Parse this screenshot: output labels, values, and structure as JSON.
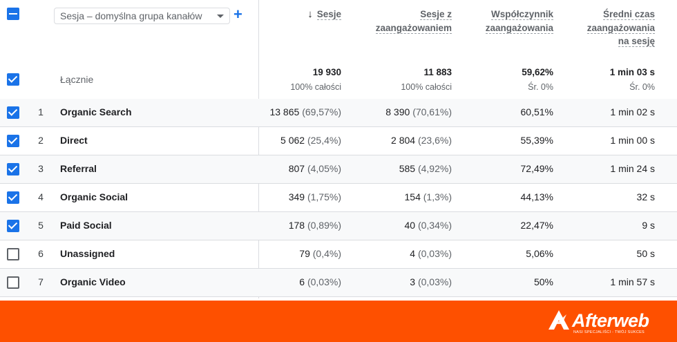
{
  "header": {
    "dimension_select": "Sesja – domyślna grupa kanałów",
    "add_dimension": "+",
    "columns": [
      {
        "lines": [
          "Sesje"
        ],
        "sorted": true,
        "sort_icon": "arrow-down-icon"
      },
      {
        "lines": [
          "Sesje z",
          "zaangażowaniem"
        ]
      },
      {
        "lines": [
          "Współczynnik",
          "zaangażowania"
        ]
      },
      {
        "lines": [
          "Średni czas",
          "zaangażowania",
          "na sesję"
        ]
      }
    ]
  },
  "totals": {
    "label": "Łącznie",
    "values": [
      "19 930",
      "11 883",
      "59,62%",
      "1 min 03 s"
    ],
    "subs": [
      "100% całości",
      "100% całości",
      "Śr. 0%",
      "Śr. 0%"
    ]
  },
  "rows": [
    {
      "index": "1",
      "checked": true,
      "name": "Organic Search",
      "sessions": "13 865",
      "sessions_pct": "(69,57%)",
      "engaged": "8 390",
      "engaged_pct": "(70,61%)",
      "rate": "60,51%",
      "time": "1 min 02 s"
    },
    {
      "index": "2",
      "checked": true,
      "name": "Direct",
      "sessions": "5 062",
      "sessions_pct": "(25,4%)",
      "engaged": "2 804",
      "engaged_pct": "(23,6%)",
      "rate": "55,39%",
      "time": "1 min 00 s"
    },
    {
      "index": "3",
      "checked": true,
      "name": "Referral",
      "sessions": "807",
      "sessions_pct": "(4,05%)",
      "engaged": "585",
      "engaged_pct": "(4,92%)",
      "rate": "72,49%",
      "time": "1 min 24 s"
    },
    {
      "index": "4",
      "checked": true,
      "name": "Organic Social",
      "sessions": "349",
      "sessions_pct": "(1,75%)",
      "engaged": "154",
      "engaged_pct": "(1,3%)",
      "rate": "44,13%",
      "time": "32 s"
    },
    {
      "index": "5",
      "checked": true,
      "name": "Paid Social",
      "sessions": "178",
      "sessions_pct": "(0,89%)",
      "engaged": "40",
      "engaged_pct": "(0,34%)",
      "rate": "22,47%",
      "time": "9 s"
    },
    {
      "index": "6",
      "checked": false,
      "name": "Unassigned",
      "sessions": "79",
      "sessions_pct": "(0,4%)",
      "engaged": "4",
      "engaged_pct": "(0,03%)",
      "rate": "5,06%",
      "time": "50 s"
    },
    {
      "index": "7",
      "checked": false,
      "name": "Organic Video",
      "sessions": "6",
      "sessions_pct": "(0,03%)",
      "engaged": "3",
      "engaged_pct": "(0,03%)",
      "rate": "50%",
      "time": "1 min 57 s"
    }
  ],
  "footer": {
    "logo_text": "Afterweb",
    "logo_tagline": "NASI SPECJALIŚCI - TWÓJ SUKCES",
    "brand_color": "#fe5000",
    "accent_color": "#1a73e8"
  }
}
